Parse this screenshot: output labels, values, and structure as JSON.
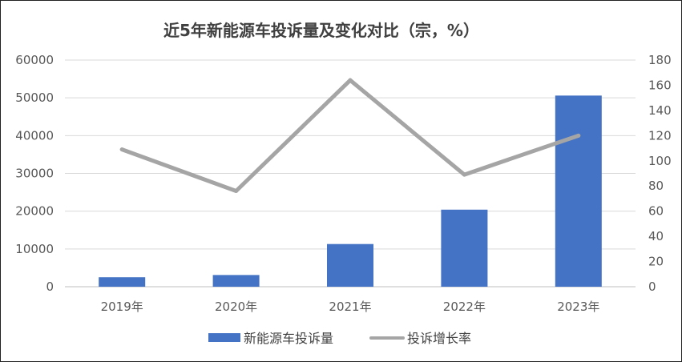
{
  "chart_data": {
    "type": "bar",
    "title": "近5年新能源车投诉量及变化对比（宗，%）",
    "categories": [
      "2019年",
      "2020年",
      "2021年",
      "2022年",
      "2023年"
    ],
    "series": [
      {
        "name": "新能源车投诉量",
        "type": "bar",
        "axis": "left",
        "color": "#4472C4",
        "values": [
          2500,
          3100,
          11300,
          20400,
          50600
        ]
      },
      {
        "name": "投诉增长率",
        "type": "line",
        "axis": "right",
        "color": "#A5A5A5",
        "values": [
          109,
          76,
          164,
          89,
          120
        ]
      }
    ],
    "y_left": {
      "min": 0,
      "max": 60000,
      "step": 10000,
      "tick_labels": [
        "0",
        "10000",
        "20000",
        "30000",
        "40000",
        "50000",
        "60000"
      ]
    },
    "y_right": {
      "min": 0,
      "max": 180,
      "step": 20,
      "tick_labels": [
        "0",
        "20",
        "40",
        "60",
        "80",
        "100",
        "120",
        "140",
        "160",
        "180"
      ]
    },
    "grid": true,
    "legend_position": "bottom"
  }
}
